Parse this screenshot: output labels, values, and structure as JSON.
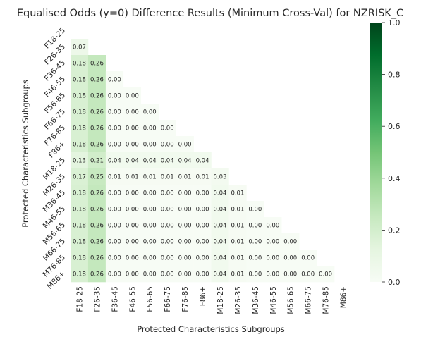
{
  "chart_data": {
    "type": "heatmap",
    "title": "Equalised Odds (y=0)  Difference Results (Minimum Cross-Val) for NZRISK_C",
    "xlabel": "Protected Characteristics Subgroups",
    "ylabel": "Protected Characteristics Subgroups",
    "x_categories": [
      "F18-25",
      "F26-35",
      "F36-45",
      "F46-55",
      "F56-65",
      "F66-75",
      "F76-85",
      "F86+",
      "M18-25",
      "M26-35",
      "M36-45",
      "M46-55",
      "M56-65",
      "M66-75",
      "M76-85",
      "M86+"
    ],
    "y_categories": [
      "F18-25",
      "F26-35",
      "F36-45",
      "F46-55",
      "F56-65",
      "F66-75",
      "F76-85",
      "F86+",
      "M18-25",
      "M26-35",
      "M36-45",
      "M46-55",
      "M56-65",
      "M66-75",
      "M76-85",
      "M86+"
    ],
    "mask": "upper-triangle-including-diagonal",
    "values": [
      [],
      [
        0.07
      ],
      [
        0.18,
        0.26
      ],
      [
        0.18,
        0.26,
        0.0
      ],
      [
        0.18,
        0.26,
        0.0,
        0.0
      ],
      [
        0.18,
        0.26,
        0.0,
        0.0,
        0.0
      ],
      [
        0.18,
        0.26,
        0.0,
        0.0,
        0.0,
        0.0
      ],
      [
        0.18,
        0.26,
        0.0,
        0.0,
        0.0,
        0.0,
        0.0
      ],
      [
        0.13,
        0.21,
        0.04,
        0.04,
        0.04,
        0.04,
        0.04,
        0.04
      ],
      [
        0.17,
        0.25,
        0.01,
        0.01,
        0.01,
        0.01,
        0.01,
        0.01,
        0.03
      ],
      [
        0.18,
        0.26,
        0.0,
        0.0,
        0.0,
        0.0,
        0.0,
        0.0,
        0.04,
        0.01
      ],
      [
        0.18,
        0.26,
        0.0,
        0.0,
        0.0,
        0.0,
        0.0,
        0.0,
        0.04,
        0.01,
        0.0
      ],
      [
        0.18,
        0.26,
        0.0,
        0.0,
        0.0,
        0.0,
        0.0,
        0.0,
        0.04,
        0.01,
        0.0,
        0.0
      ],
      [
        0.18,
        0.26,
        0.0,
        0.0,
        0.0,
        0.0,
        0.0,
        0.0,
        0.04,
        0.01,
        0.0,
        0.0,
        0.0
      ],
      [
        0.18,
        0.26,
        0.0,
        0.0,
        0.0,
        0.0,
        0.0,
        0.0,
        0.04,
        0.01,
        0.0,
        0.0,
        0.0,
        0.0
      ],
      [
        0.18,
        0.26,
        0.0,
        0.0,
        0.0,
        0.0,
        0.0,
        0.0,
        0.04,
        0.01,
        0.0,
        0.0,
        0.0,
        0.0,
        0.0
      ]
    ],
    "colormap": "Greens",
    "colorbar": {
      "range": [
        0.0,
        1.0
      ],
      "ticks": [
        "0.0",
        "0.2",
        "0.4",
        "0.6",
        "0.8",
        "1.0"
      ],
      "colors": [
        "#f7fcf5",
        "#e5f5e0",
        "#c7e9c0",
        "#a1d99b",
        "#74c476",
        "#41ab5d",
        "#238b45",
        "#006d2c",
        "#00441b"
      ]
    }
  }
}
